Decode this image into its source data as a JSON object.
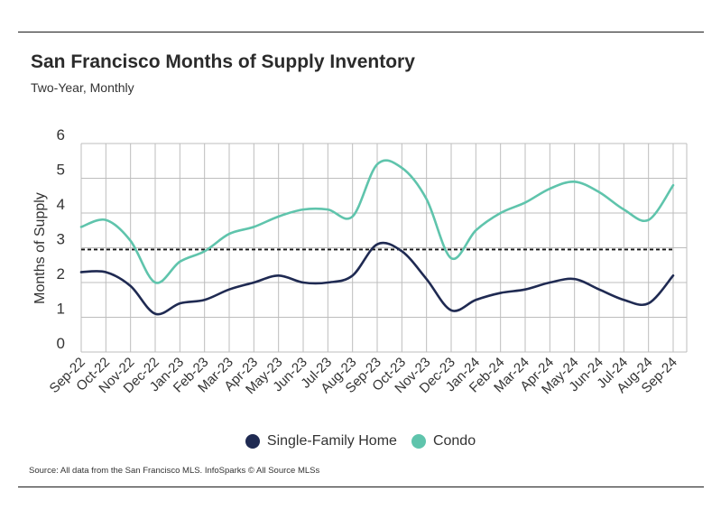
{
  "title": "San Francisco Months of Supply Inventory",
  "subtitle": "Two-Year, Monthly",
  "source": "Source:  All data from the San Francisco MLS. InfoSparks © All Source MLSs",
  "colors": {
    "single_family": "#1f2a52",
    "condo": "#5fc4ac",
    "grid": "#bdbdbd",
    "reference": "#111111"
  },
  "chart_data": {
    "type": "line",
    "title": "San Francisco Months of Supply Inventory",
    "subtitle": "Two-Year, Monthly",
    "xlabel": "",
    "ylabel": "Months of Supply",
    "ylim": [
      0,
      6
    ],
    "yticks": [
      "0",
      "1",
      "2",
      "3",
      "4",
      "5",
      "6"
    ],
    "grid": true,
    "legend_position": "bottom",
    "categories": [
      "Sep-22",
      "Oct-22",
      "Nov-22",
      "Dec-22",
      "Jan-23",
      "Feb-23",
      "Mar-23",
      "Apr-23",
      "May-23",
      "Jun-23",
      "Jul-23",
      "Aug-23",
      "Sep-23",
      "Oct-23",
      "Nov-23",
      "Dec-23",
      "Jan-24",
      "Feb-24",
      "Mar-24",
      "Apr-24",
      "May-24",
      "Jun-24",
      "Jul-24",
      "Aug-24",
      "Sep-24"
    ],
    "series": [
      {
        "name": "Single-Family Home",
        "values": [
          2.3,
          2.3,
          1.9,
          1.1,
          1.4,
          1.5,
          1.8,
          2.0,
          2.2,
          2.0,
          2.0,
          2.2,
          3.1,
          2.9,
          2.1,
          1.2,
          1.5,
          1.7,
          1.8,
          2.0,
          2.1,
          1.8,
          1.5,
          1.4,
          2.2
        ]
      },
      {
        "name": "Condo",
        "values": [
          3.6,
          3.8,
          3.2,
          2.0,
          2.6,
          2.9,
          3.4,
          3.6,
          3.9,
          4.1,
          4.1,
          3.9,
          5.4,
          5.3,
          4.4,
          2.7,
          3.5,
          4.0,
          4.3,
          4.7,
          4.9,
          4.6,
          4.1,
          3.8,
          4.8
        ]
      }
    ],
    "reference_line": {
      "value": 2.95,
      "style": "dashed"
    }
  }
}
